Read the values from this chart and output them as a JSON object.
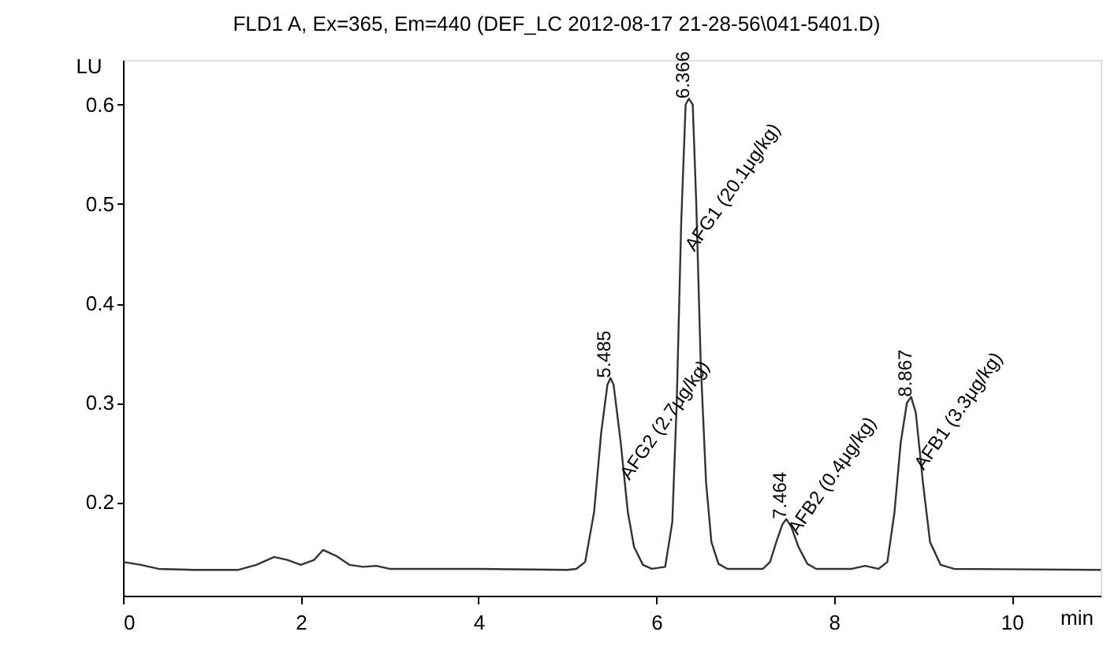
{
  "chart_data": {
    "type": "line",
    "title": "FLD1 A, Ex=365, Em=440 (DEF_LC 2012-08-17 21-28-56\\041-5401.D)",
    "xlabel": "min",
    "ylabel": "LU",
    "xlim": [
      0,
      11
    ],
    "ylim": [
      0.106,
      0.645
    ],
    "xticks": [
      0,
      2,
      4,
      6,
      8,
      10
    ],
    "yticks": [
      0.2,
      0.3,
      0.4,
      0.5,
      0.6
    ],
    "grid": false,
    "marker": "none",
    "line_style": "solid",
    "series": [
      {
        "color": "#333333",
        "x": [
          0,
          0.2,
          0.4,
          0.8,
          1.3,
          1.5,
          1.7,
          1.85,
          2.0,
          2.15,
          2.25,
          2.4,
          2.55,
          2.7,
          2.85,
          3.0,
          4.0,
          5.0,
          5.1,
          5.2,
          5.3,
          5.38,
          5.45,
          5.485,
          5.52,
          5.6,
          5.68,
          5.75,
          5.85,
          5.95,
          6.1,
          6.18,
          6.23,
          6.28,
          6.33,
          6.366,
          6.41,
          6.45,
          6.5,
          6.56,
          6.62,
          6.7,
          6.8,
          7.2,
          7.28,
          7.35,
          7.42,
          7.464,
          7.52,
          7.6,
          7.7,
          7.8,
          8.2,
          8.35,
          8.5,
          8.6,
          8.68,
          8.75,
          8.82,
          8.867,
          8.92,
          9.0,
          9.08,
          9.2,
          9.35,
          11
        ],
        "values": [
          0.14,
          0.137,
          0.133,
          0.132,
          0.132,
          0.137,
          0.145,
          0.142,
          0.137,
          0.142,
          0.152,
          0.146,
          0.137,
          0.135,
          0.136,
          0.133,
          0.133,
          0.132,
          0.133,
          0.14,
          0.19,
          0.27,
          0.318,
          0.325,
          0.318,
          0.26,
          0.19,
          0.155,
          0.137,
          0.133,
          0.135,
          0.18,
          0.3,
          0.48,
          0.6,
          0.606,
          0.6,
          0.5,
          0.34,
          0.22,
          0.16,
          0.138,
          0.133,
          0.133,
          0.14,
          0.16,
          0.178,
          0.183,
          0.175,
          0.155,
          0.138,
          0.133,
          0.133,
          0.136,
          0.133,
          0.14,
          0.19,
          0.26,
          0.3,
          0.306,
          0.29,
          0.22,
          0.16,
          0.137,
          0.133,
          0.132
        ]
      }
    ],
    "annotations": [
      {
        "text": "5.485",
        "x": 5.485,
        "y": 0.325
      },
      {
        "text": "6.366",
        "x": 6.366,
        "y": 0.606
      },
      {
        "text": "7.464",
        "x": 7.464,
        "y": 0.183
      },
      {
        "text": "8.867",
        "x": 8.867,
        "y": 0.306
      },
      {
        "text": "AFG2 (2.7μg/kg)",
        "x": 5.64,
        "y": 0.225
      },
      {
        "text": "AFG1 (20.1μg/kg)",
        "x": 6.37,
        "y": 0.455
      },
      {
        "text": "AFB2 (0.4μg/kg)",
        "x": 7.53,
        "y": 0.17
      },
      {
        "text": "AFB1 (3.3μg/kg)",
        "x": 8.95,
        "y": 0.235
      }
    ]
  }
}
